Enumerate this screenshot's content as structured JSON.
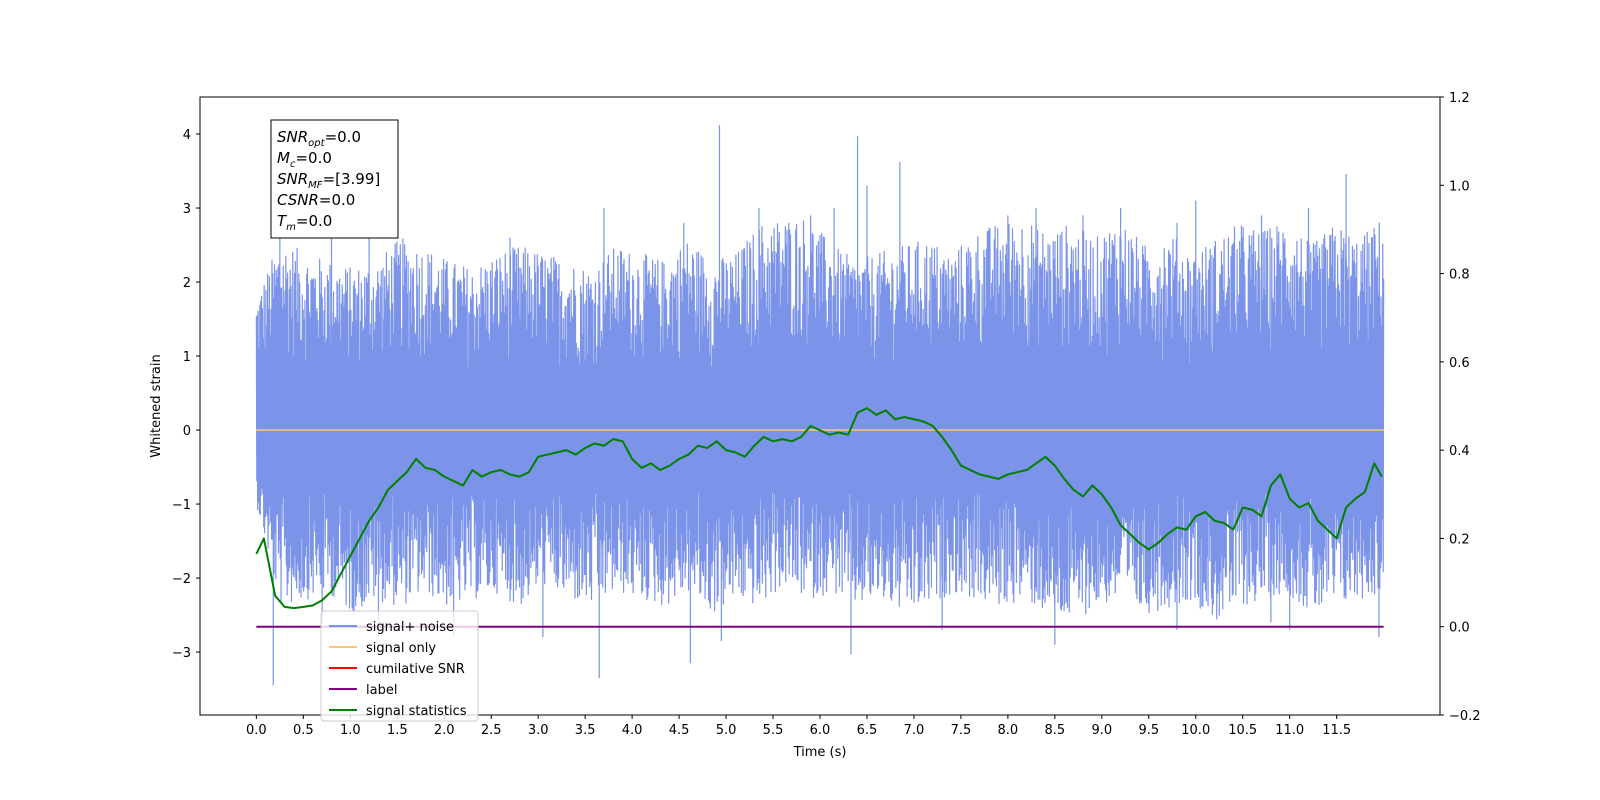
{
  "chart_data": {
    "type": "line",
    "xlabel": "Time (s)",
    "ylabel": "Whitened strain",
    "xlim": [
      -0.6,
      12.6
    ],
    "ylim": [
      -3.85,
      4.5
    ],
    "y2lim": [
      -0.2,
      1.2
    ],
    "x_ticks": [
      0.0,
      0.5,
      1.0,
      1.5,
      2.0,
      2.5,
      3.0,
      3.5,
      4.0,
      4.5,
      5.0,
      5.5,
      6.0,
      6.5,
      7.0,
      7.5,
      8.0,
      8.5,
      9.0,
      9.5,
      10.0,
      10.5,
      11.0,
      11.5
    ],
    "x_tick_labels": [
      "0.0",
      "0.5",
      "1.0",
      "1.5",
      "2.0",
      "2.5",
      "3.0",
      "3.5",
      "4.0",
      "4.5",
      "5.0",
      "5.5",
      "6.0",
      "6.5",
      "7.0",
      "7.5",
      "8.0",
      "8.5",
      "9.0",
      "9.5",
      "10.0",
      "10.5",
      "11.0",
      "11.5"
    ],
    "y_ticks": [
      4,
      3,
      2,
      1,
      0,
      -1,
      -2,
      -3
    ],
    "y_tick_labels": [
      "4",
      "3",
      "2",
      "1",
      "0",
      "−1",
      "−2",
      "−3"
    ],
    "y2_ticks": [
      1.2,
      1.0,
      0.8,
      0.6,
      0.4,
      0.2,
      0.0,
      -0.2
    ],
    "y2_tick_labels": [
      "1.2",
      "1.0",
      "0.8",
      "0.6",
      "0.4",
      "0.2",
      "0.0",
      "−0.2"
    ],
    "grid": false,
    "legend_position": "lower-left",
    "legend": [
      {
        "label": "signal+ noise",
        "color": "#7b93e8"
      },
      {
        "label": "signal only",
        "color": "#ffc870"
      },
      {
        "label": "cumilative SNR",
        "color": "#ff0000"
      },
      {
        "label": "label",
        "color": "#800080"
      },
      {
        "label": "signal statistics",
        "color": "#008000"
      }
    ],
    "annotation": [
      {
        "base": "SNR",
        "sub": "opt",
        "value": "=0.0"
      },
      {
        "base": "M",
        "sub": "c",
        "value": "=0.0"
      },
      {
        "base": "SNR",
        "sub": "MF",
        "value": "=[3.99]"
      },
      {
        "base": "CSNR",
        "sub": "",
        "value": "=0.0"
      },
      {
        "base": "T",
        "sub": "m",
        "value": "=0.0"
      }
    ],
    "series": [
      {
        "name": "signal+ noise",
        "axis": "left",
        "color": "#7b93e8",
        "x_range": [
          0.0,
          12.0
        ],
        "envelope_upper": [
          1.8,
          2.6,
          2.4,
          2.3,
          2.2,
          2.3,
          2.6,
          2.5,
          2.3,
          2.2,
          2.4,
          2.5,
          2.4,
          2.3,
          2.2,
          2.5,
          2.4,
          2.3,
          2.6,
          2.3,
          2.4,
          2.8,
          2.9,
          2.9,
          2.5,
          2.3,
          2.4,
          2.5,
          2.6,
          2.4,
          2.7,
          2.8,
          2.9,
          2.7,
          2.8,
          2.6,
          2.9,
          2.5,
          2.7,
          2.4,
          2.6,
          2.8,
          2.7,
          2.9,
          2.5,
          2.8,
          2.6,
          2.9
        ],
        "envelope_lower": [
          -1.0,
          -2.4,
          -2.3,
          -2.2,
          -2.5,
          -2.3,
          -2.4,
          -2.2,
          -2.4,
          -2.3,
          -2.2,
          -2.4,
          -2.1,
          -2.3,
          -2.4,
          -2.2,
          -2.3,
          -2.4,
          -2.2,
          -2.5,
          -2.3,
          -2.4,
          -2.1,
          -2.3,
          -2.2,
          -2.4,
          -2.3,
          -2.5,
          -2.4,
          -2.2,
          -2.3,
          -2.4,
          -2.3,
          -2.5,
          -2.6,
          -2.4,
          -2.3,
          -2.5,
          -2.4,
          -2.3,
          -2.6,
          -2.4,
          -2.3,
          -2.2,
          -2.5,
          -2.4,
          -2.3,
          -2.2
        ],
        "spikes_up": [
          [
            0.25,
            2.9
          ],
          [
            0.8,
            2.6
          ],
          [
            1.2,
            2.8
          ],
          [
            2.7,
            2.6
          ],
          [
            3.7,
            3.0
          ],
          [
            4.55,
            2.8
          ],
          [
            4.93,
            4.12
          ],
          [
            5.35,
            3.0
          ],
          [
            5.9,
            2.9
          ],
          [
            6.15,
            3.0
          ],
          [
            6.4,
            3.97
          ],
          [
            6.5,
            3.3
          ],
          [
            6.85,
            3.62
          ],
          [
            8.0,
            2.9
          ],
          [
            8.3,
            3.0
          ],
          [
            8.8,
            2.9
          ],
          [
            9.2,
            3.0
          ],
          [
            9.8,
            2.8
          ],
          [
            10.0,
            3.1
          ],
          [
            10.7,
            2.9
          ],
          [
            11.2,
            3.0
          ],
          [
            11.6,
            3.46
          ]
        ],
        "spikes_down": [
          [
            0.18,
            -2.8
          ],
          [
            0.18,
            -3.45
          ],
          [
            0.7,
            -2.6
          ],
          [
            1.3,
            -2.8
          ],
          [
            2.1,
            -2.8
          ],
          [
            3.05,
            -2.8
          ],
          [
            3.65,
            -3.35
          ],
          [
            4.62,
            -3.15
          ],
          [
            4.95,
            -2.85
          ],
          [
            6.33,
            -3.03
          ],
          [
            7.3,
            -2.7
          ],
          [
            8.5,
            -2.9
          ],
          [
            9.8,
            -2.7
          ],
          [
            10.8,
            -2.6
          ],
          [
            11.0,
            -2.7
          ],
          [
            11.95,
            -2.8
          ]
        ]
      },
      {
        "name": "signal only",
        "axis": "left",
        "color": "#ffc870",
        "x": [
          0.0,
          12.0
        ],
        "values": [
          0.0,
          0.0
        ]
      },
      {
        "name": "label",
        "axis": "right",
        "color": "#800080",
        "x": [
          0.0,
          12.0
        ],
        "values": [
          0.0,
          0.0
        ]
      },
      {
        "name": "signal statistics",
        "axis": "right",
        "color": "#008000",
        "x": [
          0.0,
          0.08,
          0.2,
          0.3,
          0.4,
          0.5,
          0.6,
          0.7,
          0.8,
          0.9,
          1.0,
          1.1,
          1.2,
          1.3,
          1.4,
          1.5,
          1.6,
          1.7,
          1.8,
          1.9,
          2.0,
          2.1,
          2.2,
          2.3,
          2.4,
          2.5,
          2.6,
          2.7,
          2.8,
          2.9,
          3.0,
          3.1,
          3.2,
          3.3,
          3.4,
          3.5,
          3.6,
          3.7,
          3.8,
          3.9,
          4.0,
          4.1,
          4.2,
          4.3,
          4.4,
          4.5,
          4.6,
          4.7,
          4.8,
          4.9,
          5.0,
          5.1,
          5.2,
          5.3,
          5.4,
          5.5,
          5.6,
          5.7,
          5.8,
          5.9,
          6.0,
          6.1,
          6.2,
          6.3,
          6.4,
          6.5,
          6.6,
          6.7,
          6.8,
          6.9,
          7.0,
          7.1,
          7.2,
          7.3,
          7.4,
          7.5,
          7.6,
          7.7,
          7.8,
          7.9,
          8.0,
          8.1,
          8.2,
          8.3,
          8.4,
          8.5,
          8.6,
          8.7,
          8.8,
          8.9,
          9.0,
          9.1,
          9.2,
          9.3,
          9.4,
          9.5,
          9.6,
          9.7,
          9.8,
          9.9,
          10.0,
          10.1,
          10.2,
          10.3,
          10.4,
          10.5,
          10.6,
          10.7,
          10.8,
          10.9,
          11.0,
          11.1,
          11.2,
          11.3,
          11.4,
          11.5,
          11.6,
          11.7,
          11.8,
          11.9,
          11.98
        ],
        "values": [
          0.165,
          0.2,
          0.07,
          0.045,
          0.042,
          0.045,
          0.048,
          0.06,
          0.08,
          0.12,
          0.16,
          0.2,
          0.24,
          0.27,
          0.31,
          0.33,
          0.35,
          0.38,
          0.36,
          0.355,
          0.34,
          0.33,
          0.32,
          0.355,
          0.34,
          0.35,
          0.355,
          0.345,
          0.34,
          0.35,
          0.385,
          0.39,
          0.395,
          0.4,
          0.39,
          0.405,
          0.415,
          0.41,
          0.425,
          0.42,
          0.38,
          0.36,
          0.37,
          0.355,
          0.365,
          0.38,
          0.39,
          0.41,
          0.405,
          0.42,
          0.4,
          0.395,
          0.385,
          0.41,
          0.43,
          0.42,
          0.425,
          0.42,
          0.43,
          0.455,
          0.445,
          0.435,
          0.44,
          0.435,
          0.485,
          0.495,
          0.48,
          0.49,
          0.47,
          0.475,
          0.47,
          0.465,
          0.455,
          0.43,
          0.4,
          0.365,
          0.355,
          0.345,
          0.34,
          0.335,
          0.345,
          0.35,
          0.355,
          0.37,
          0.385,
          0.365,
          0.335,
          0.31,
          0.295,
          0.32,
          0.3,
          0.27,
          0.23,
          0.21,
          0.19,
          0.175,
          0.19,
          0.21,
          0.225,
          0.22,
          0.25,
          0.26,
          0.24,
          0.235,
          0.22,
          0.27,
          0.265,
          0.25,
          0.32,
          0.345,
          0.29,
          0.27,
          0.28,
          0.24,
          0.22,
          0.2,
          0.27,
          0.29,
          0.305,
          0.37,
          0.34
        ]
      }
    ]
  }
}
